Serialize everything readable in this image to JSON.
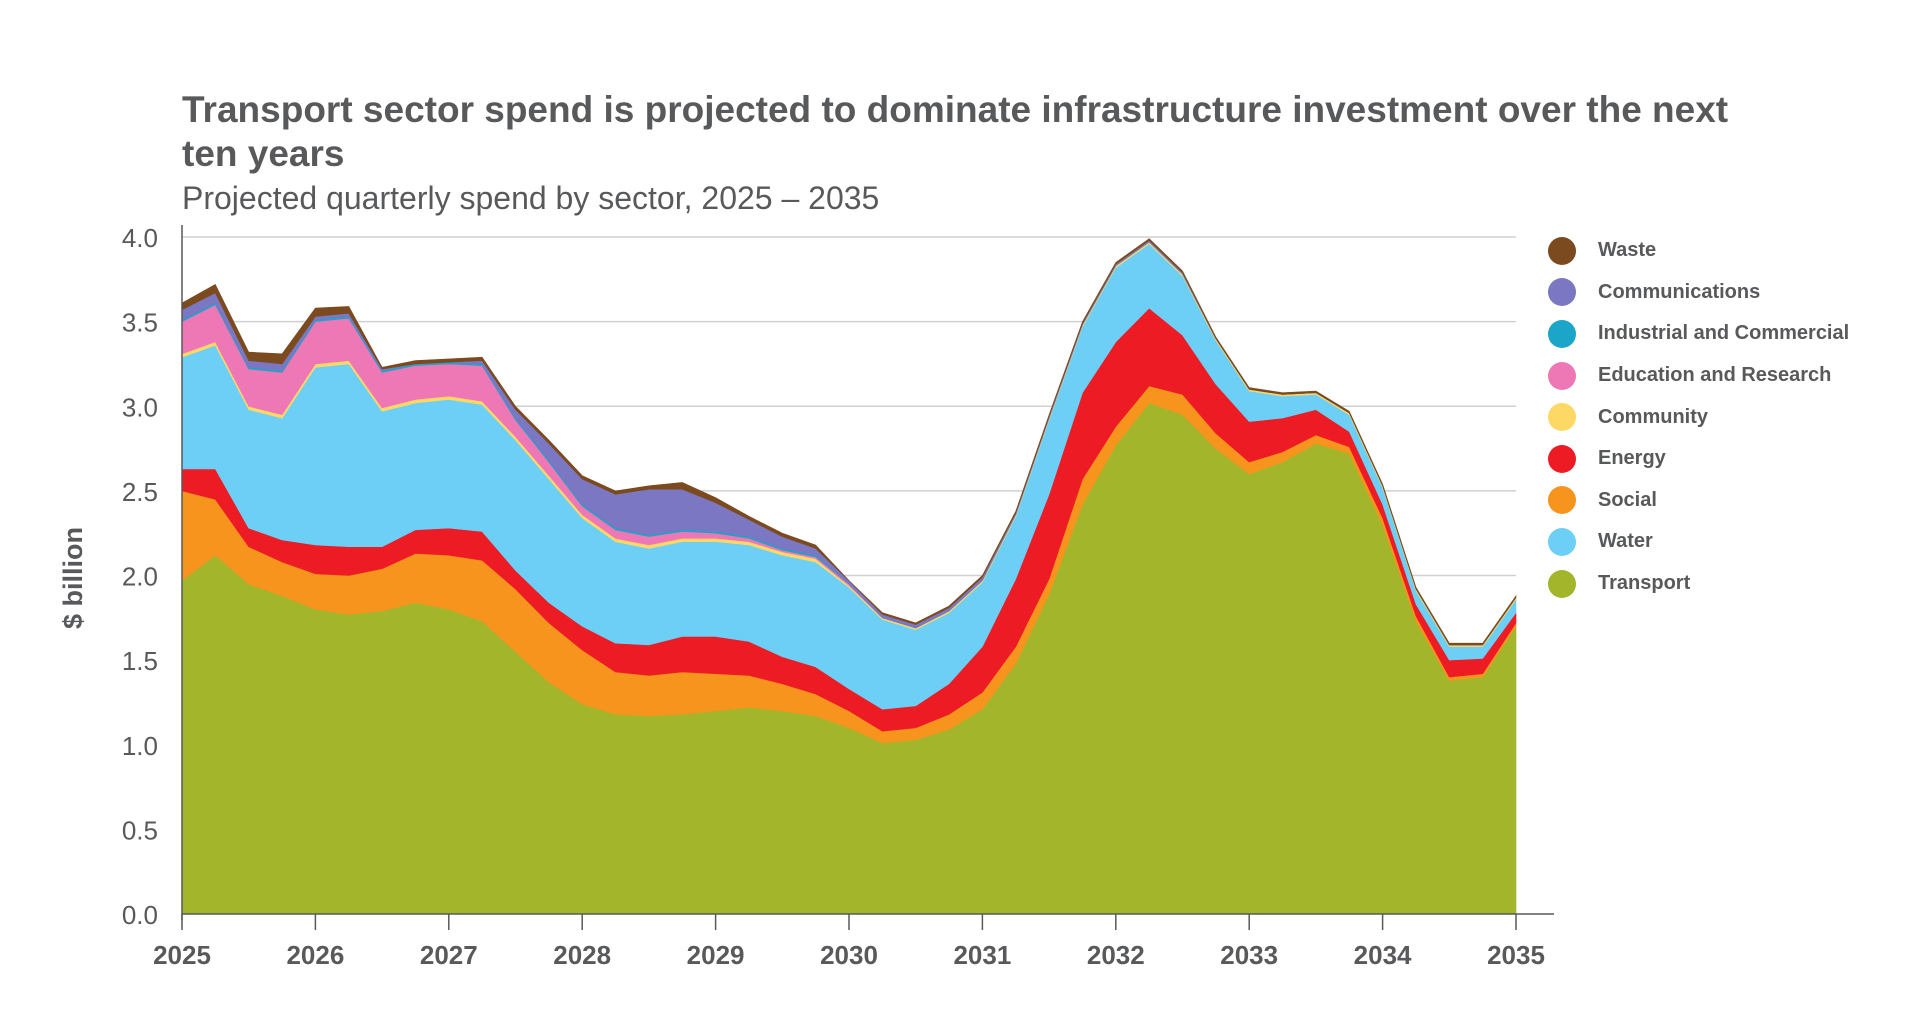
{
  "chart_data": {
    "type": "area",
    "stacked": true,
    "title": "Transport sector spend is projected to dominate infrastructure investment over the next ten years",
    "subtitle": "Projected quarterly spend by sector, 2025 – 2035",
    "ylabel": "$ billion",
    "xlabel": "",
    "ylim": [
      0,
      4.0
    ],
    "yticks": [
      "0.0",
      "0.5",
      "1.0",
      "1.5",
      "2.0",
      "2.5",
      "3.0",
      "3.5",
      "4.0"
    ],
    "xticks": [
      "2025",
      "2026",
      "2027",
      "2028",
      "2029",
      "2030",
      "2031",
      "2032",
      "2033",
      "2034",
      "2035"
    ],
    "x": [
      "2025 Q1",
      "2025 Q2",
      "2025 Q3",
      "2025 Q4",
      "2026 Q1",
      "2026 Q2",
      "2026 Q3",
      "2026 Q4",
      "2027 Q1",
      "2027 Q2",
      "2027 Q3",
      "2027 Q4",
      "2028 Q1",
      "2028 Q2",
      "2028 Q3",
      "2028 Q4",
      "2029 Q1",
      "2029 Q2",
      "2029 Q3",
      "2029 Q4",
      "2030 Q1",
      "2030 Q2",
      "2030 Q3",
      "2030 Q4",
      "2031 Q1",
      "2031 Q2",
      "2031 Q3",
      "2031 Q4",
      "2032 Q1",
      "2032 Q2",
      "2032 Q3",
      "2032 Q4",
      "2033 Q1",
      "2033 Q2",
      "2033 Q3",
      "2033 Q4",
      "2034 Q1",
      "2034 Q2",
      "2034 Q3",
      "2034 Q4",
      "2035 Q1"
    ],
    "grid": true,
    "legend_position": "right",
    "series": [
      {
        "name": "Transport",
        "color": "#a3b52b",
        "values": [
          1.97,
          2.12,
          1.95,
          1.88,
          1.8,
          1.77,
          1.79,
          1.84,
          1.8,
          1.73,
          1.55,
          1.37,
          1.24,
          1.18,
          1.17,
          1.18,
          1.2,
          1.22,
          1.2,
          1.17,
          1.1,
          1.01,
          1.03,
          1.09,
          1.21,
          1.48,
          1.89,
          2.42,
          2.77,
          3.02,
          2.95,
          2.75,
          2.6,
          2.67,
          2.78,
          2.72,
          2.3,
          1.73,
          1.38,
          1.4,
          1.7
        ]
      },
      {
        "name": "Social",
        "color": "#f7941d",
        "values": [
          0.53,
          0.33,
          0.22,
          0.2,
          0.21,
          0.23,
          0.25,
          0.29,
          0.32,
          0.36,
          0.37,
          0.35,
          0.32,
          0.25,
          0.24,
          0.25,
          0.22,
          0.19,
          0.16,
          0.13,
          0.1,
          0.07,
          0.07,
          0.09,
          0.1,
          0.1,
          0.09,
          0.15,
          0.11,
          0.1,
          0.12,
          0.09,
          0.07,
          0.06,
          0.05,
          0.04,
          0.04,
          0.03,
          0.02,
          0.02,
          0.02
        ]
      },
      {
        "name": "Energy",
        "color": "#ed1c24",
        "values": [
          0.13,
          0.18,
          0.11,
          0.13,
          0.17,
          0.17,
          0.13,
          0.14,
          0.16,
          0.17,
          0.11,
          0.12,
          0.14,
          0.17,
          0.18,
          0.21,
          0.22,
          0.2,
          0.16,
          0.16,
          0.13,
          0.13,
          0.13,
          0.18,
          0.27,
          0.4,
          0.5,
          0.51,
          0.5,
          0.46,
          0.35,
          0.29,
          0.24,
          0.2,
          0.15,
          0.09,
          0.08,
          0.07,
          0.1,
          0.09,
          0.06
        ]
      },
      {
        "name": "Water",
        "color": "#6dcff6",
        "values": [
          0.66,
          0.73,
          0.7,
          0.72,
          1.05,
          1.08,
          0.8,
          0.75,
          0.76,
          0.75,
          0.77,
          0.73,
          0.64,
          0.6,
          0.57,
          0.56,
          0.56,
          0.57,
          0.6,
          0.62,
          0.6,
          0.53,
          0.45,
          0.42,
          0.38,
          0.37,
          0.44,
          0.39,
          0.44,
          0.38,
          0.35,
          0.26,
          0.18,
          0.13,
          0.09,
          0.1,
          0.1,
          0.08,
          0.08,
          0.07,
          0.08
        ]
      },
      {
        "name": "Community",
        "color": "#fdd865",
        "values": [
          0.02,
          0.02,
          0.02,
          0.02,
          0.02,
          0.02,
          0.02,
          0.02,
          0.02,
          0.02,
          0.02,
          0.02,
          0.02,
          0.02,
          0.02,
          0.02,
          0.02,
          0.02,
          0.02,
          0.02,
          0.01,
          0.01,
          0.01,
          0.01,
          0.01,
          0.01,
          0.01,
          0.01,
          0.01,
          0.01,
          0.01,
          0.01,
          0.01,
          0.01,
          0.01,
          0.01,
          0.01,
          0.01,
          0.01,
          0.01,
          0.01
        ]
      },
      {
        "name": "Education and Research",
        "color": "#ee77b5",
        "values": [
          0.19,
          0.22,
          0.22,
          0.25,
          0.25,
          0.25,
          0.21,
          0.2,
          0.19,
          0.21,
          0.1,
          0.08,
          0.05,
          0.05,
          0.05,
          0.04,
          0.03,
          0.02,
          0.01,
          0.01,
          0.01,
          0.0,
          0.0,
          0.0,
          0.0,
          0.0,
          0.0,
          0.0,
          0.0,
          0.0,
          0.0,
          0.0,
          0.0,
          0.0,
          0.0,
          0.0,
          0.0,
          0.0,
          0.0,
          0.0,
          0.0
        ]
      },
      {
        "name": "Industrial and Commercial",
        "color": "#1ba5c9",
        "values": [
          0.01,
          0.01,
          0.01,
          0.01,
          0.01,
          0.01,
          0.01,
          0.01,
          0.01,
          0.01,
          0.01,
          0.01,
          0.01,
          0.01,
          0.01,
          0.01,
          0.01,
          0.01,
          0.01,
          0.01,
          0.0,
          0.0,
          0.0,
          0.0,
          0.0,
          0.0,
          0.0,
          0.0,
          0.0,
          0.0,
          0.0,
          0.0,
          0.0,
          0.0,
          0.0,
          0.0,
          0.0,
          0.0,
          0.0,
          0.0,
          0.0
        ]
      },
      {
        "name": "Communications",
        "color": "#7b77c2",
        "values": [
          0.06,
          0.06,
          0.04,
          0.04,
          0.02,
          0.02,
          0.01,
          0.0,
          0.0,
          0.02,
          0.05,
          0.1,
          0.15,
          0.2,
          0.27,
          0.24,
          0.17,
          0.1,
          0.07,
          0.04,
          0.02,
          0.02,
          0.02,
          0.02,
          0.02,
          0.01,
          0.01,
          0.01,
          0.01,
          0.01,
          0.01,
          0.0,
          0.0,
          0.0,
          0.0,
          0.0,
          0.0,
          0.0,
          0.0,
          0.0,
          0.0
        ]
      },
      {
        "name": "Waste",
        "color": "#7b4a1e",
        "values": [
          0.04,
          0.05,
          0.05,
          0.06,
          0.05,
          0.04,
          0.01,
          0.02,
          0.02,
          0.02,
          0.02,
          0.02,
          0.02,
          0.02,
          0.02,
          0.04,
          0.03,
          0.02,
          0.02,
          0.02,
          0.0,
          0.01,
          0.01,
          0.01,
          0.01,
          0.01,
          0.01,
          0.01,
          0.01,
          0.01,
          0.01,
          0.01,
          0.01,
          0.01,
          0.01,
          0.01,
          0.01,
          0.01,
          0.01,
          0.01,
          0.01
        ]
      }
    ]
  },
  "legend_order": [
    "Waste",
    "Communications",
    "Industrial and Commercial",
    "Education and Research",
    "Community",
    "Energy",
    "Social",
    "Water",
    "Transport"
  ]
}
